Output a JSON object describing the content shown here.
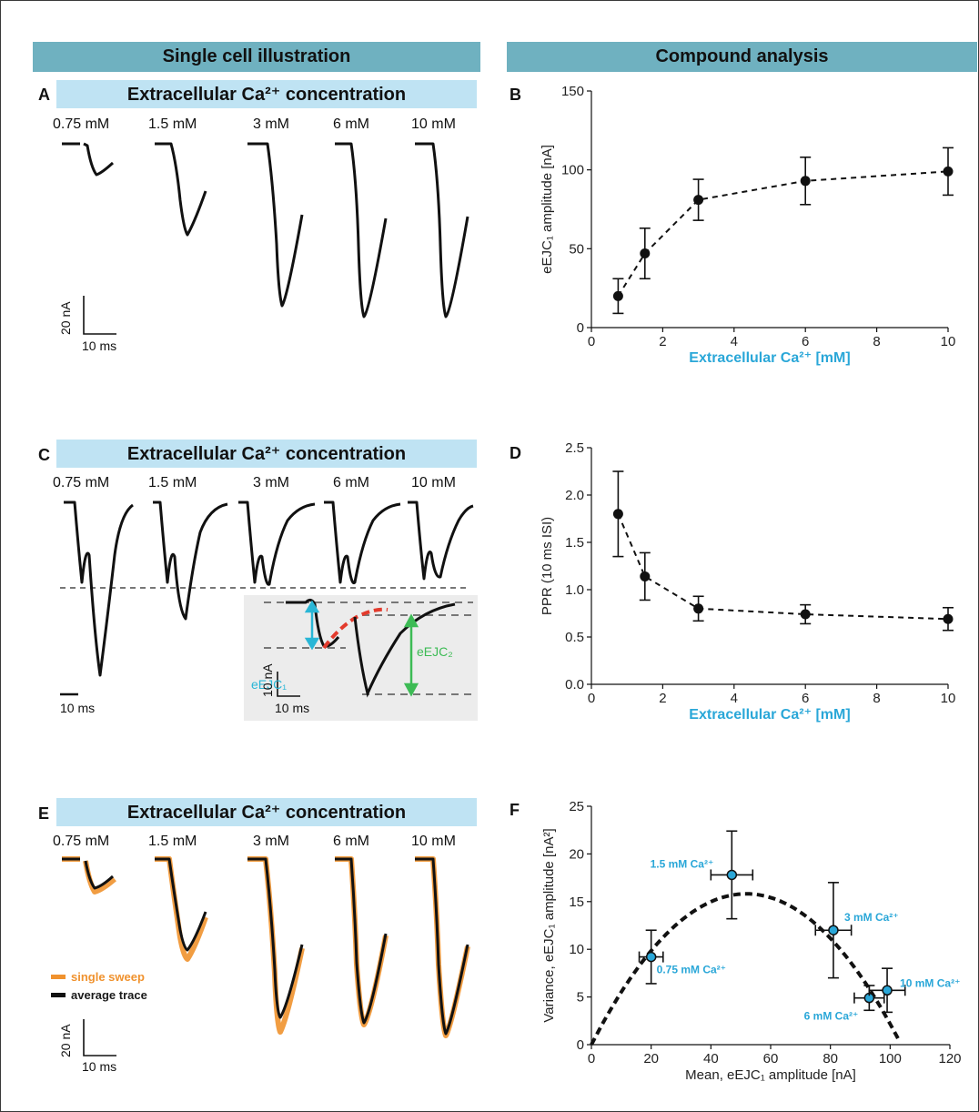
{
  "headers": {
    "left": "Single cell illustration",
    "right": "Compound analysis"
  },
  "panel_letters": {
    "a": "A",
    "b": "B",
    "c": "C",
    "d": "D",
    "e": "E",
    "f": "F"
  },
  "concentration_title": "Extracellular Ca²⁺ concentration",
  "conditions": [
    "0.75 mM",
    "1.5 mM",
    "3 mM",
    "6 mM",
    "10 mM"
  ],
  "scalebars": {
    "current_a": "20 nA",
    "time_a": "10 ms",
    "time_c": "10 ms",
    "current_inset": "10 nA",
    "time_inset": "10 ms",
    "current_e": "20 nA",
    "time_e": "10 ms"
  },
  "inset_labels": {
    "e1": "eEJC₁",
    "e2": "eEJC₂"
  },
  "legend": {
    "single": "single sweep",
    "average": "average trace",
    "single_color": "#f0922e",
    "average_color": "#111111"
  },
  "colors": {
    "header": "#6fb1c0",
    "concentration_bar": "#bfe3f3",
    "accent": "#2aa7d8",
    "eejc1_arrow": "#29b6d6",
    "eejc2_arrow": "#3dbb55",
    "fit_red": "#e33b2d"
  },
  "chart_data": [
    {
      "panel": "B",
      "type": "line",
      "xlabel": "Extracellular Ca²⁺ [mM]",
      "ylabel": "eEJC₁ amplitude [nA]",
      "xlim": [
        0,
        10
      ],
      "ylim": [
        0,
        150
      ],
      "xticks": [
        "0",
        "2",
        "4",
        "6",
        "8",
        "10"
      ],
      "yticks": [
        "0",
        "50",
        "100",
        "150"
      ],
      "x": [
        0.75,
        1.5,
        3,
        6,
        10
      ],
      "y": [
        20,
        47,
        81,
        93,
        99
      ],
      "yerr": [
        11,
        16,
        13,
        15,
        15
      ],
      "line_style": "dashed"
    },
    {
      "panel": "D",
      "type": "line",
      "xlabel": "Extracellular Ca²⁺ [mM]",
      "ylabel": "PPR (10 ms ISI)",
      "xlim": [
        0,
        10
      ],
      "ylim": [
        0,
        2.5
      ],
      "xticks": [
        "0",
        "2",
        "4",
        "6",
        "8",
        "10"
      ],
      "yticks": [
        "0.0",
        "0.5",
        "1.0",
        "1.5",
        "2.0",
        "2.5"
      ],
      "x": [
        0.75,
        1.5,
        3,
        6,
        10
      ],
      "y": [
        1.8,
        1.14,
        0.8,
        0.74,
        0.69
      ],
      "yerr": [
        0.45,
        0.25,
        0.13,
        0.1,
        0.12
      ],
      "line_style": "dashed"
    },
    {
      "panel": "F",
      "type": "scatter",
      "xlabel": "Mean, eEJC₁ amplitude [nA]",
      "ylabel": "Variance, eEJC₁ amplitude [nA²]",
      "xlim": [
        0,
        120
      ],
      "ylim": [
        0,
        25
      ],
      "xticks": [
        "0",
        "20",
        "40",
        "60",
        "80",
        "100",
        "120"
      ],
      "yticks": [
        "0",
        "5",
        "10",
        "15",
        "20",
        "25"
      ],
      "points": [
        {
          "label": "0.75 mM Ca²⁺",
          "x": 20,
          "y": 9.2,
          "xerr": 4,
          "yerr": 2.8
        },
        {
          "label": "1.5 mM Ca²⁺",
          "x": 47,
          "y": 17.8,
          "xerr": 7,
          "yerr": 4.6
        },
        {
          "label": "3 mM Ca²⁺",
          "x": 81,
          "y": 12,
          "xerr": 6,
          "yerr": 5
        },
        {
          "label": "6 mM Ca²⁺",
          "x": 93,
          "y": 4.9,
          "xerr": 5,
          "yerr": 1.3
        },
        {
          "label": "10 mM Ca²⁺",
          "x": 99,
          "y": 5.7,
          "xerr": 6,
          "yerr": 2.3
        }
      ],
      "fit_parabola": {
        "i": 0.61,
        "N": 170
      }
    }
  ]
}
